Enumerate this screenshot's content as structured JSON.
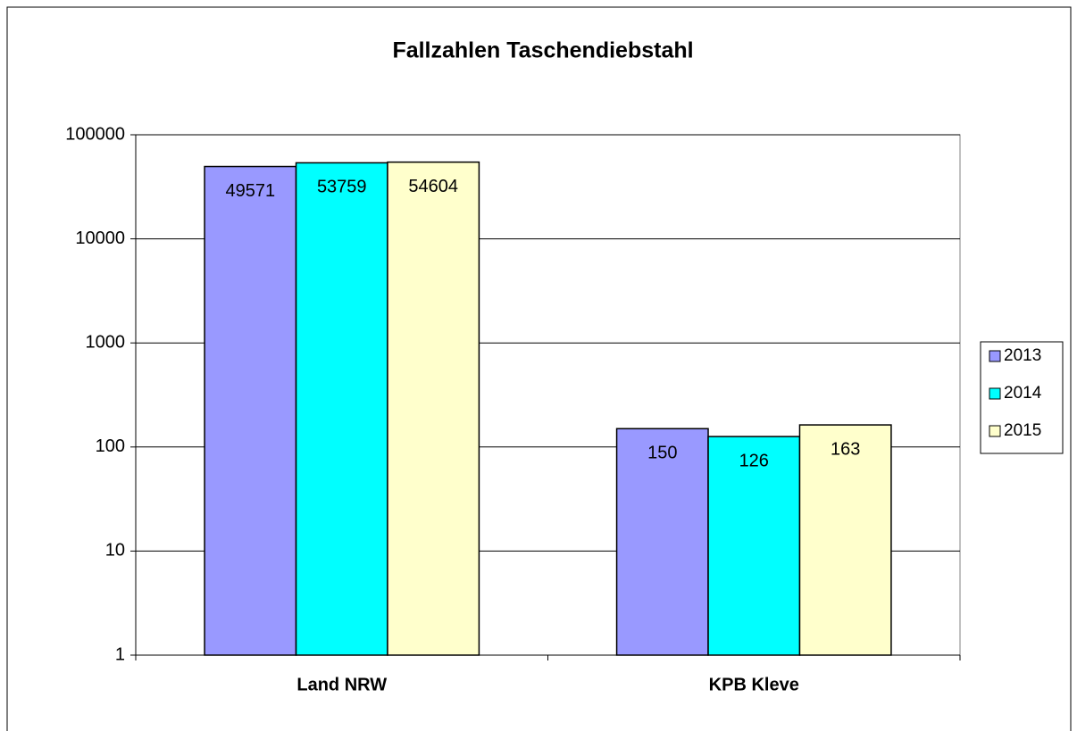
{
  "chart_data": {
    "type": "bar",
    "title": "Fallzahlen Taschendiebstahl",
    "categories": [
      "Land NRW",
      "KPB Kleve"
    ],
    "series": [
      {
        "name": "2013",
        "color": "#9999ff",
        "values": [
          49571,
          150
        ]
      },
      {
        "name": "2014",
        "color": "#00ffff",
        "values": [
          53759,
          126
        ]
      },
      {
        "name": "2015",
        "color": "#ffffcc",
        "values": [
          54604,
          163
        ]
      }
    ],
    "ylim": [
      1,
      100000
    ],
    "yticks": [
      1,
      10,
      100,
      1000,
      10000,
      100000
    ],
    "log_scale": true,
    "grid": true,
    "legend": "right"
  }
}
